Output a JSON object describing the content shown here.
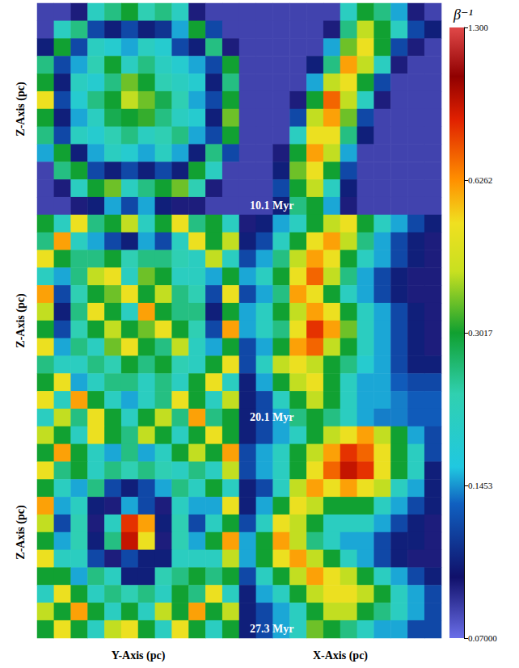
{
  "chart_data": [
    {
      "type": "heatmap",
      "ylabel": "Z-Axis (pc)",
      "tick_labels": false,
      "cells": [
        [
          0.08,
          0.08,
          0.09,
          0.2,
          0.25,
          0.3,
          0.22,
          0.25,
          0.2,
          0.09,
          0.08,
          0.08
        ],
        [
          0.08,
          0.2,
          0.25,
          0.12,
          0.1,
          0.12,
          0.1,
          0.11,
          0.15,
          0.3,
          0.12,
          0.08
        ],
        [
          0.1,
          0.3,
          0.12,
          0.2,
          0.18,
          0.15,
          0.2,
          0.18,
          0.12,
          0.1,
          0.25,
          0.09
        ],
        [
          0.25,
          0.12,
          0.15,
          0.22,
          0.3,
          0.2,
          0.25,
          0.2,
          0.18,
          0.15,
          0.12,
          0.3
        ],
        [
          0.3,
          0.1,
          0.2,
          0.18,
          0.25,
          0.35,
          0.3,
          0.22,
          0.2,
          0.18,
          0.1,
          0.25
        ],
        [
          0.5,
          0.12,
          0.18,
          0.25,
          0.3,
          0.4,
          0.35,
          0.28,
          0.22,
          0.15,
          0.12,
          0.3
        ],
        [
          0.3,
          0.1,
          0.15,
          0.2,
          0.28,
          0.3,
          0.32,
          0.25,
          0.2,
          0.18,
          0.1,
          0.35
        ],
        [
          0.25,
          0.12,
          0.2,
          0.18,
          0.22,
          0.25,
          0.2,
          0.22,
          0.25,
          0.15,
          0.12,
          0.3
        ],
        [
          0.15,
          0.3,
          0.1,
          0.15,
          0.2,
          0.18,
          0.15,
          0.2,
          0.15,
          0.1,
          0.25,
          0.12
        ],
        [
          0.08,
          0.25,
          0.3,
          0.12,
          0.1,
          0.12,
          0.1,
          0.12,
          0.1,
          0.3,
          0.2,
          0.08
        ],
        [
          0.08,
          0.09,
          0.2,
          0.3,
          0.35,
          0.2,
          0.25,
          0.3,
          0.35,
          0.22,
          0.09,
          0.08
        ],
        [
          0.08,
          0.08,
          0.09,
          0.1,
          0.15,
          0.12,
          0.15,
          0.1,
          0.09,
          0.09,
          0.08,
          0.08
        ]
      ]
    },
    {
      "type": "heatmap",
      "annotation": "10.1 Myr",
      "tick_labels": false,
      "cells": [
        [
          0.08,
          0.08,
          0.08,
          0.08,
          0.08,
          0.08,
          0.2,
          0.3,
          0.25,
          0.15,
          0.09,
          0.08
        ],
        [
          0.08,
          0.08,
          0.08,
          0.08,
          0.08,
          0.09,
          0.25,
          0.4,
          0.3,
          0.2,
          0.12,
          0.1
        ],
        [
          0.08,
          0.08,
          0.08,
          0.08,
          0.08,
          0.15,
          0.35,
          0.5,
          0.3,
          0.12,
          0.09,
          0.08
        ],
        [
          0.08,
          0.08,
          0.08,
          0.08,
          0.1,
          0.25,
          0.6,
          0.4,
          0.2,
          0.09,
          0.08,
          0.08
        ],
        [
          0.08,
          0.08,
          0.08,
          0.08,
          0.15,
          0.4,
          0.5,
          0.3,
          0.12,
          0.08,
          0.08,
          0.08
        ],
        [
          0.08,
          0.08,
          0.08,
          0.09,
          0.3,
          0.7,
          0.4,
          0.2,
          0.09,
          0.08,
          0.08,
          0.08
        ],
        [
          0.08,
          0.08,
          0.08,
          0.12,
          0.4,
          0.6,
          0.35,
          0.12,
          0.08,
          0.08,
          0.08,
          0.08
        ],
        [
          0.08,
          0.08,
          0.08,
          0.2,
          0.5,
          0.5,
          0.25,
          0.1,
          0.08,
          0.08,
          0.08,
          0.08
        ],
        [
          0.08,
          0.08,
          0.09,
          0.3,
          0.6,
          0.4,
          0.15,
          0.08,
          0.08,
          0.08,
          0.08,
          0.08
        ],
        [
          0.08,
          0.08,
          0.1,
          0.35,
          0.5,
          0.3,
          0.12,
          0.08,
          0.08,
          0.08,
          0.08,
          0.08
        ],
        [
          0.08,
          0.08,
          0.12,
          0.3,
          0.4,
          0.2,
          0.1,
          0.08,
          0.08,
          0.08,
          0.08,
          0.08
        ],
        [
          0.08,
          0.08,
          0.1,
          0.25,
          0.3,
          0.15,
          0.09,
          0.08,
          0.08,
          0.08,
          0.08,
          0.08
        ]
      ]
    },
    {
      "type": "heatmap",
      "ylabel": "Z-Axis (pc)",
      "tick_labels": false,
      "cells": [
        [
          0.3,
          0.2,
          0.5,
          0.25,
          0.3,
          0.4,
          0.2,
          0.3,
          0.5,
          0.25,
          0.3,
          0.2
        ],
        [
          0.25,
          0.6,
          0.2,
          0.15,
          0.12,
          0.1,
          0.15,
          0.12,
          0.2,
          0.5,
          0.3,
          0.4
        ],
        [
          0.5,
          0.3,
          0.25,
          0.25,
          0.3,
          0.22,
          0.25,
          0.25,
          0.22,
          0.2,
          0.4,
          0.2
        ],
        [
          0.2,
          0.15,
          0.25,
          0.4,
          0.5,
          0.2,
          0.35,
          0.3,
          0.2,
          0.2,
          0.15,
          0.3
        ],
        [
          0.6,
          0.12,
          0.22,
          0.3,
          0.35,
          0.5,
          0.3,
          0.4,
          0.25,
          0.22,
          0.12,
          0.5
        ],
        [
          0.4,
          0.1,
          0.25,
          0.5,
          0.3,
          0.2,
          0.6,
          0.3,
          0.25,
          0.25,
          0.1,
          0.3
        ],
        [
          0.3,
          0.12,
          0.22,
          0.3,
          0.4,
          0.3,
          0.35,
          0.5,
          0.3,
          0.22,
          0.12,
          0.6
        ],
        [
          0.5,
          0.15,
          0.25,
          0.2,
          0.35,
          0.5,
          0.3,
          0.25,
          0.4,
          0.2,
          0.15,
          0.3
        ],
        [
          0.25,
          0.2,
          0.2,
          0.25,
          0.22,
          0.3,
          0.25,
          0.3,
          0.22,
          0.2,
          0.3,
          0.5
        ],
        [
          0.3,
          0.5,
          0.15,
          0.2,
          0.25,
          0.25,
          0.2,
          0.25,
          0.2,
          0.3,
          0.5,
          0.2
        ],
        [
          0.5,
          0.2,
          0.6,
          0.3,
          0.2,
          0.15,
          0.2,
          0.25,
          0.5,
          0.3,
          0.2,
          0.4
        ],
        [
          0.2,
          0.4,
          0.25,
          0.5,
          0.3,
          0.2,
          0.3,
          0.4,
          0.25,
          0.6,
          0.25,
          0.3
        ]
      ]
    },
    {
      "type": "heatmap",
      "annotation": "20.1 Myr",
      "tick_labels": false,
      "cells": [
        [
          0.09,
          0.1,
          0.15,
          0.2,
          0.3,
          0.4,
          0.5,
          0.3,
          0.2,
          0.15,
          0.12,
          0.1
        ],
        [
          0.1,
          0.12,
          0.2,
          0.3,
          0.5,
          0.6,
          0.4,
          0.25,
          0.15,
          0.12,
          0.1,
          0.09
        ],
        [
          0.12,
          0.15,
          0.25,
          0.4,
          0.6,
          0.5,
          0.3,
          0.2,
          0.15,
          0.12,
          0.1,
          0.09
        ],
        [
          0.15,
          0.2,
          0.3,
          0.5,
          0.7,
          0.4,
          0.25,
          0.15,
          0.12,
          0.1,
          0.09,
          0.09
        ],
        [
          0.12,
          0.15,
          0.25,
          0.6,
          0.5,
          0.3,
          0.2,
          0.15,
          0.12,
          0.1,
          0.09,
          0.09
        ],
        [
          0.15,
          0.2,
          0.3,
          0.4,
          0.6,
          0.5,
          0.3,
          0.2,
          0.15,
          0.12,
          0.1,
          0.09
        ],
        [
          0.15,
          0.2,
          0.25,
          0.5,
          0.8,
          0.6,
          0.35,
          0.2,
          0.15,
          0.12,
          0.1,
          0.09
        ],
        [
          0.12,
          0.15,
          0.3,
          0.6,
          0.7,
          0.4,
          0.3,
          0.2,
          0.15,
          0.12,
          0.1,
          0.09
        ],
        [
          0.12,
          0.2,
          0.4,
          0.5,
          0.4,
          0.3,
          0.25,
          0.18,
          0.15,
          0.12,
          0.1,
          0.1
        ],
        [
          0.1,
          0.15,
          0.3,
          0.4,
          0.5,
          0.3,
          0.2,
          0.15,
          0.15,
          0.13,
          0.12,
          0.12
        ],
        [
          0.1,
          0.12,
          0.2,
          0.3,
          0.4,
          0.3,
          0.2,
          0.15,
          0.15,
          0.14,
          0.13,
          0.13
        ],
        [
          0.1,
          0.12,
          0.15,
          0.25,
          0.3,
          0.25,
          0.2,
          0.15,
          0.14,
          0.14,
          0.13,
          0.13
        ]
      ]
    },
    {
      "type": "heatmap",
      "ylabel": "Z-Axis (pc)",
      "xlabel": "Y-Axis (pc)",
      "tick_labels": false,
      "cells": [
        [
          0.4,
          0.3,
          0.2,
          0.5,
          0.3,
          0.25,
          0.4,
          0.3,
          0.2,
          0.3,
          0.5,
          0.3
        ],
        [
          0.3,
          0.6,
          0.3,
          0.2,
          0.15,
          0.25,
          0.15,
          0.2,
          0.3,
          0.4,
          0.3,
          0.6
        ],
        [
          0.5,
          0.25,
          0.3,
          0.2,
          0.25,
          0.22,
          0.25,
          0.22,
          0.2,
          0.25,
          0.2,
          0.4
        ],
        [
          0.3,
          0.2,
          0.15,
          0.25,
          0.12,
          0.1,
          0.12,
          0.15,
          0.25,
          0.2,
          0.3,
          0.2
        ],
        [
          0.6,
          0.15,
          0.2,
          0.1,
          0.09,
          0.15,
          0.12,
          0.09,
          0.2,
          0.15,
          0.15,
          0.5
        ],
        [
          0.4,
          0.12,
          0.22,
          0.09,
          0.2,
          0.8,
          0.6,
          0.1,
          0.22,
          0.12,
          0.2,
          0.3
        ],
        [
          0.3,
          0.15,
          0.22,
          0.1,
          0.25,
          0.9,
          0.5,
          0.09,
          0.22,
          0.15,
          0.3,
          0.6
        ],
        [
          0.5,
          0.2,
          0.2,
          0.12,
          0.09,
          0.12,
          0.1,
          0.1,
          0.2,
          0.2,
          0.2,
          0.4
        ],
        [
          0.3,
          0.3,
          0.15,
          0.25,
          0.2,
          0.1,
          0.1,
          0.22,
          0.25,
          0.3,
          0.25,
          0.3
        ],
        [
          0.2,
          0.5,
          0.3,
          0.2,
          0.25,
          0.22,
          0.25,
          0.2,
          0.3,
          0.25,
          0.5,
          0.2
        ],
        [
          0.4,
          0.3,
          0.6,
          0.3,
          0.2,
          0.3,
          0.2,
          0.4,
          0.3,
          0.6,
          0.3,
          0.4
        ],
        [
          0.3,
          0.5,
          0.3,
          0.2,
          0.4,
          0.5,
          0.3,
          0.2,
          0.5,
          0.3,
          0.2,
          0.3
        ]
      ]
    },
    {
      "type": "heatmap",
      "xlabel": "X-Axis (pc)",
      "annotation": "27.3 Myr",
      "tick_labels": false,
      "cells": [
        [
          0.1,
          0.12,
          0.15,
          0.2,
          0.3,
          0.4,
          0.5,
          0.6,
          0.4,
          0.3,
          0.15,
          0.12
        ],
        [
          0.12,
          0.15,
          0.2,
          0.3,
          0.4,
          0.6,
          0.8,
          0.7,
          0.5,
          0.3,
          0.2,
          0.12
        ],
        [
          0.12,
          0.15,
          0.2,
          0.3,
          0.5,
          0.7,
          0.9,
          0.8,
          0.5,
          0.3,
          0.2,
          0.1
        ],
        [
          0.1,
          0.12,
          0.2,
          0.4,
          0.6,
          0.5,
          0.6,
          0.5,
          0.4,
          0.2,
          0.15,
          0.1
        ],
        [
          0.1,
          0.15,
          0.3,
          0.5,
          0.4,
          0.3,
          0.3,
          0.3,
          0.2,
          0.15,
          0.12,
          0.1
        ],
        [
          0.12,
          0.2,
          0.5,
          0.4,
          0.3,
          0.2,
          0.2,
          0.2,
          0.15,
          0.12,
          0.1,
          0.09
        ],
        [
          0.15,
          0.3,
          0.6,
          0.4,
          0.25,
          0.2,
          0.15,
          0.15,
          0.12,
          0.1,
          0.1,
          0.09
        ],
        [
          0.15,
          0.3,
          0.5,
          0.6,
          0.4,
          0.3,
          0.2,
          0.15,
          0.12,
          0.1,
          0.09,
          0.09
        ],
        [
          0.12,
          0.2,
          0.3,
          0.4,
          0.6,
          0.5,
          0.4,
          0.3,
          0.2,
          0.15,
          0.12,
          0.1
        ],
        [
          0.1,
          0.15,
          0.2,
          0.3,
          0.4,
          0.5,
          0.5,
          0.4,
          0.3,
          0.2,
          0.15,
          0.12
        ],
        [
          0.1,
          0.12,
          0.15,
          0.2,
          0.3,
          0.4,
          0.4,
          0.3,
          0.25,
          0.2,
          0.15,
          0.12
        ],
        [
          0.1,
          0.12,
          0.15,
          0.2,
          0.35,
          0.3,
          0.25,
          0.2,
          0.15,
          0.15,
          0.12,
          0.12
        ]
      ]
    }
  ],
  "colorbar": {
    "title": "β⁻¹",
    "log": true,
    "range": [
      0.07,
      1.3
    ],
    "ticks": [
      {
        "value": 0.07,
        "label": "0.07000"
      },
      0.1453,
      0.3017,
      0.6262,
      {
        "value": 1.3,
        "label": "1.300"
      }
    ]
  }
}
